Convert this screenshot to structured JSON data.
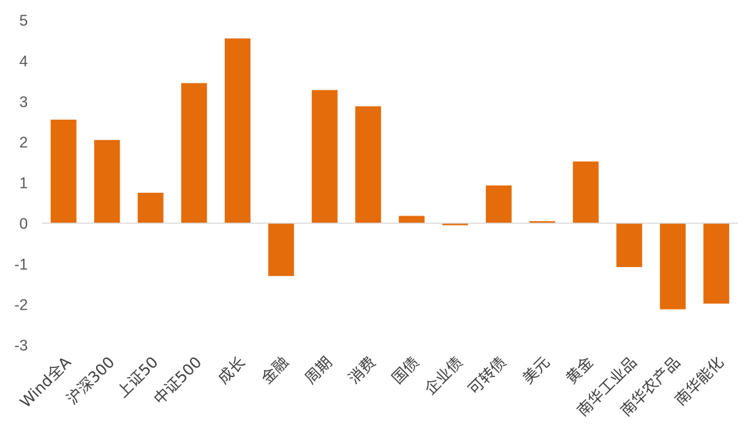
{
  "chart_data": {
    "type": "bar",
    "title": "",
    "xlabel": "",
    "ylabel": "",
    "ylim": [
      -3,
      5
    ],
    "yticks": [
      5,
      4,
      3,
      2,
      1,
      0,
      -1,
      -2,
      -3
    ],
    "grid": false,
    "legend": "none",
    "bar_color": "#E46C0A",
    "categories": [
      "Wind全A",
      "沪深300",
      "上证50",
      "中证500",
      "成长",
      "金融",
      "周期",
      "消费",
      "国债",
      "企业债",
      "可转债",
      "美元",
      "黄金",
      "南华工业品",
      "南华农产品",
      "南华能化"
    ],
    "values": [
      2.55,
      2.05,
      0.75,
      3.45,
      4.55,
      -1.3,
      3.28,
      2.88,
      0.18,
      -0.05,
      0.93,
      0.05,
      1.52,
      -1.08,
      -2.12,
      -1.98
    ]
  }
}
